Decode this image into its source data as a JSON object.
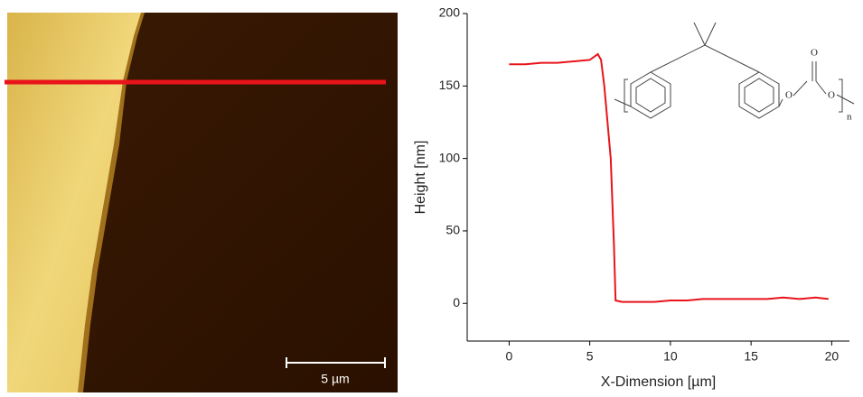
{
  "chart_data": {
    "type": "line",
    "x_label": "X-Dimension [µm]",
    "y_label": "Height [nm]",
    "scale_bar": "5 µm",
    "structure": {
      "atoms": [
        "O",
        "O",
        "O"
      ],
      "subscript": "n"
    },
    "xlim": [
      -2.6,
      21.1
    ],
    "xticks": [
      0,
      5,
      10,
      15,
      20
    ],
    "ylim": [
      -26,
      200
    ],
    "yticks": [
      0,
      50,
      100,
      150,
      200
    ],
    "x": [
      0,
      1,
      2,
      3,
      4,
      5,
      5.5,
      5.7,
      5.9,
      6.1,
      6.3,
      6.5,
      6.6,
      7,
      8,
      9,
      10,
      11,
      12,
      13,
      14,
      15,
      16,
      17,
      18,
      19,
      19.8
    ],
    "series": [
      {
        "color": "#e8141a",
        "values": [
          165,
          165,
          166,
          166,
          167,
          168,
          172,
          168,
          150,
          125,
          100,
          40,
          2,
          1,
          1,
          1,
          2,
          2,
          3,
          3,
          3,
          3,
          3,
          4,
          3,
          4,
          3
        ]
      }
    ]
  }
}
